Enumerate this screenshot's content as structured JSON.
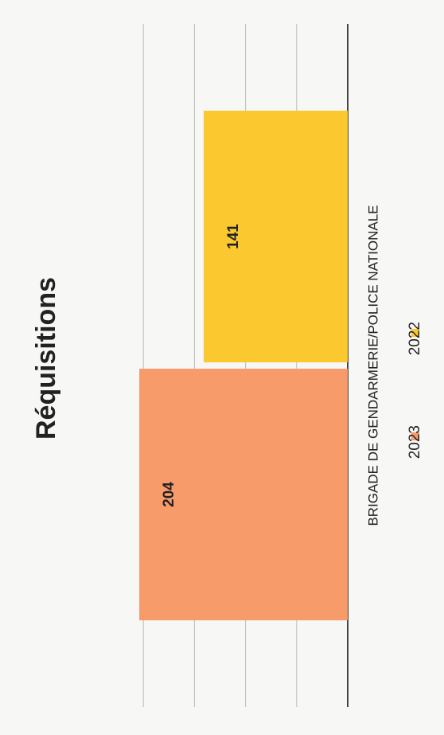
{
  "chart_data": {
    "type": "bar",
    "title": "Réquisitions",
    "categories": [
      "BRIGADE DE GENDARMERIE/POLICE NATIONALE"
    ],
    "series": [
      {
        "name": "2023",
        "color": "#f89b6b",
        "values": [
          204
        ]
      },
      {
        "name": "2022",
        "color": "#fbc830",
        "values": [
          141
        ]
      }
    ],
    "ylim": [
      0,
      250
    ],
    "yticks": [
      0,
      50,
      100,
      150,
      200
    ],
    "grid": true,
    "legend": "bottom"
  }
}
